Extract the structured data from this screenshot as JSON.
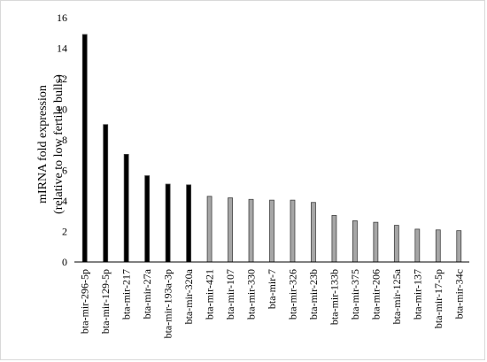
{
  "chart_data": {
    "type": "bar",
    "title": "",
    "xlabel": "",
    "ylabel": "mIRNA fold expression",
    "ylabel_line2": "(relative to  low fertile bulls)",
    "ylim": [
      0,
      16
    ],
    "yticks": [
      0,
      2,
      4,
      6,
      8,
      10,
      12,
      14,
      16
    ],
    "grid": false,
    "legend": "none",
    "categories": [
      "bta-mir-296-5p",
      "bta-mir-129-5p",
      "bta-mir-217",
      "bta-mir-27a",
      "bta-mir-193a-3p",
      "bta-mir-320a",
      "bta-mir-421",
      "bta-mir-107",
      "bta-mir-330",
      "bta-mir-7",
      "bta-mir-326",
      "bta-mir-23b",
      "bta-mir-133b",
      "bta-mir-375",
      "bta-mir-206",
      "bta-mir-125a",
      "bta-mir-137",
      "bta-mir-17-5p",
      "bta-mir-34c"
    ],
    "values": [
      14.9,
      9.0,
      7.05,
      5.65,
      5.1,
      5.05,
      4.3,
      4.2,
      4.1,
      4.05,
      4.05,
      3.9,
      3.05,
      2.7,
      2.6,
      2.4,
      2.15,
      2.1,
      2.05
    ],
    "bar_colors": [
      "#000000",
      "#000000",
      "#000000",
      "#000000",
      "#000000",
      "#000000",
      "#a6a6a6",
      "#a6a6a6",
      "#a6a6a6",
      "#a6a6a6",
      "#a6a6a6",
      "#a6a6a6",
      "#a6a6a6",
      "#a6a6a6",
      "#a6a6a6",
      "#a6a6a6",
      "#a6a6a6",
      "#a6a6a6",
      "#a6a6a6"
    ],
    "bar_edge_color": "#404040",
    "axis_color": "#000000"
  }
}
